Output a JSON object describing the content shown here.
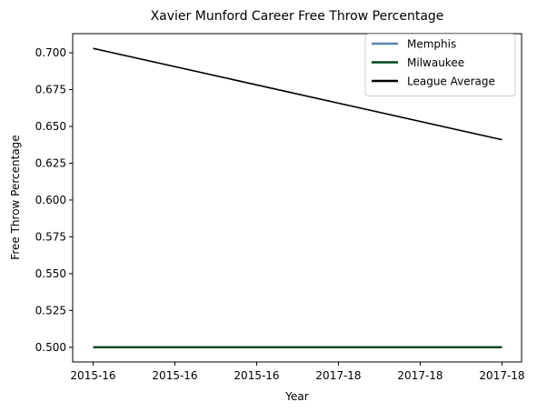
{
  "chart_data": {
    "type": "line",
    "title": "Xavier Munford Career Free Throw Percentage",
    "xlabel": "Year",
    "ylabel": "Free Throw Percentage",
    "x_ticklabels": [
      "2015-16",
      "2015-16",
      "2015-16",
      "2017-18",
      "2017-18",
      "2017-18"
    ],
    "ylim": [
      0.49,
      0.713
    ],
    "y_ticks": [
      0.5,
      0.525,
      0.55,
      0.575,
      0.6,
      0.625,
      0.65,
      0.675,
      0.7
    ],
    "y_ticklabels": [
      "0.500",
      "0.525",
      "0.550",
      "0.575",
      "0.600",
      "0.625",
      "0.650",
      "0.675",
      "0.700"
    ],
    "grid": false,
    "legend_position": "top-right",
    "series": [
      {
        "name": "Memphis",
        "color": "#5b84b1",
        "x": [
          0,
          1
        ],
        "y": [
          0.5,
          0.5
        ]
      },
      {
        "name": "Milwaukee",
        "color": "#00471b",
        "x": [
          0,
          1
        ],
        "y": [
          0.5,
          0.5
        ]
      },
      {
        "name": "League Average",
        "color": "#000000",
        "x": [
          0,
          1
        ],
        "y": [
          0.703,
          0.641
        ]
      }
    ]
  }
}
